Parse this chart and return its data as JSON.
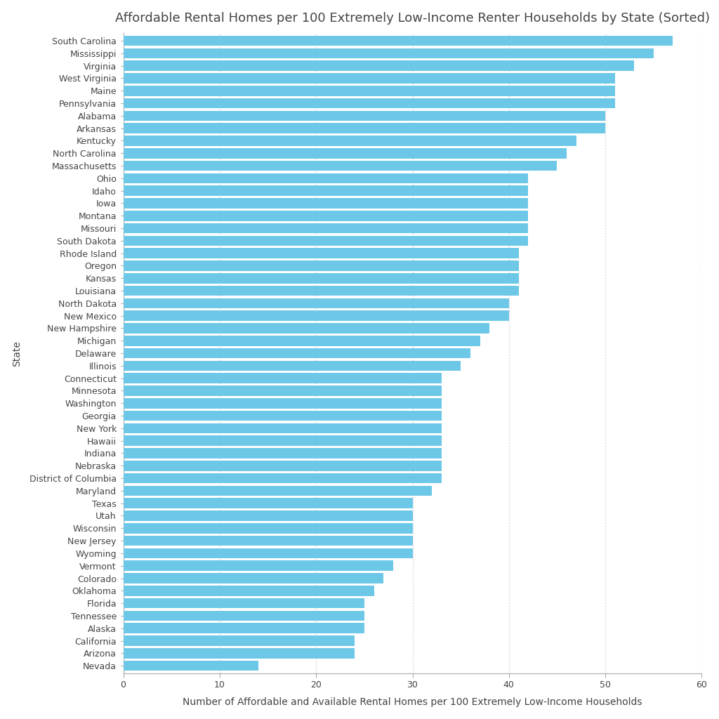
{
  "title": "Affordable Rental Homes per 100 Extremely Low-Income Renter Households by State (Sorted)",
  "xlabel": "Number of Affordable and Available Rental Homes per 100 Extremely Low-Income Households",
  "ylabel": "State",
  "bar_color": "#6DC8E8",
  "background_color": "#FFFFFF",
  "states": [
    "South Carolina",
    "Mississippi",
    "Virginia",
    "West Virginia",
    "Maine",
    "Pennsylvania",
    "Alabama",
    "Arkansas",
    "Kentucky",
    "North Carolina",
    "Massachusetts",
    "Ohio",
    "Idaho",
    "Iowa",
    "Montana",
    "Missouri",
    "South Dakota",
    "Rhode Island",
    "Oregon",
    "Kansas",
    "Louisiana",
    "North Dakota",
    "New Mexico",
    "New Hampshire",
    "Michigan",
    "Delaware",
    "Illinois",
    "Connecticut",
    "Minnesota",
    "Washington",
    "Georgia",
    "New York",
    "Hawaii",
    "Indiana",
    "Nebraska",
    "District of Columbia",
    "Maryland",
    "Texas",
    "Utah",
    "Wisconsin",
    "New Jersey",
    "Wyoming",
    "Vermont",
    "Colorado",
    "Oklahoma",
    "Florida",
    "Tennessee",
    "Alaska",
    "California",
    "Arizona",
    "Nevada"
  ],
  "values": [
    57,
    55,
    53,
    51,
    51,
    51,
    50,
    50,
    47,
    46,
    45,
    42,
    42,
    42,
    42,
    42,
    42,
    41,
    41,
    41,
    41,
    40,
    40,
    38,
    37,
    36,
    35,
    33,
    33,
    33,
    33,
    33,
    33,
    33,
    33,
    33,
    32,
    30,
    30,
    30,
    30,
    30,
    28,
    27,
    26,
    25,
    25,
    25,
    24,
    24,
    14
  ],
  "xlim": [
    0,
    60
  ],
  "xticks": [
    0,
    10,
    20,
    30,
    40,
    50,
    60
  ],
  "grid_color": "#CCCCCC",
  "title_fontsize": 13,
  "label_fontsize": 10,
  "tick_fontsize": 9,
  "bar_height": 0.82,
  "text_color": "#444444",
  "spine_color": "#AAAAAA"
}
